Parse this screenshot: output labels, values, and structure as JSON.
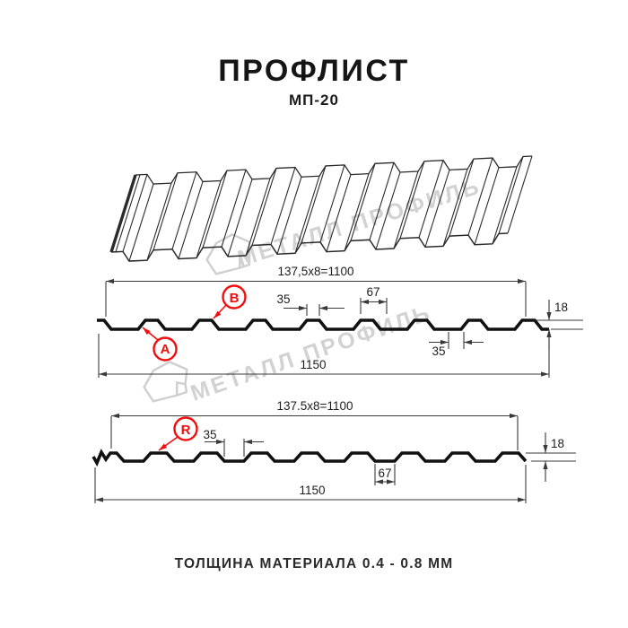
{
  "header": {
    "title": "ПРОФЛИСТ",
    "subtitle": "МП-20"
  },
  "watermark": {
    "text": "МЕТАЛЛ ПРОФИЛЬ"
  },
  "profile1": {
    "dim_top": "137,5x8=1100",
    "dim_rib_top": "35",
    "dim_valley": "67",
    "dim_height": "18",
    "dim_total": "1150",
    "dim_rib_bottom": "35",
    "label_a": "A",
    "label_b": "B"
  },
  "profile2": {
    "dim_top": "137.5x8=1100",
    "dim_valley": "35",
    "dim_rib": "67",
    "dim_height": "18",
    "dim_total": "1150",
    "label_r": "R"
  },
  "footer": {
    "text": "ТОЛЩИНА МАТЕРИАЛА 0.4 - 0.8 ММ"
  },
  "colors": {
    "ink": "#111111",
    "thin": "#3a3a3a",
    "red": "#f10e0e",
    "watermark": "#d2d2d2",
    "logo": "#cfcfcf",
    "sheet": "#2b2b2b"
  }
}
